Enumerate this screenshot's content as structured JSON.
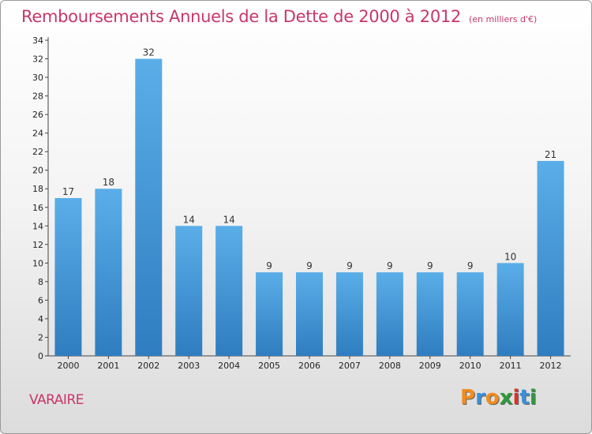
{
  "header": {
    "title": "Remboursements Annuels de la Dette de 2000 à 2012",
    "subtitle": "(en milliers d'€)"
  },
  "footer": {
    "commune": "VARAIRE",
    "logo": [
      "P",
      "r",
      "o",
      "x",
      "i",
      "t",
      "i"
    ]
  },
  "colors": {
    "title": "#c8366b",
    "bar_top": "#5aaee8",
    "bar_bottom": "#2f7dc0",
    "logo": [
      "#f28c1b",
      "#3c8fd6",
      "#f28c1b",
      "#2e9a3a",
      "#d8352a",
      "#3c8fd6",
      "#2e9a3a"
    ]
  },
  "chart_data": {
    "type": "bar",
    "title": "Remboursements Annuels de la Dette de 2000 à 2012",
    "subtitle": "(en milliers d'€)",
    "categories": [
      "2000",
      "2001",
      "2002",
      "2003",
      "2004",
      "2005",
      "2006",
      "2007",
      "2008",
      "2009",
      "2010",
      "2011",
      "2012"
    ],
    "values": [
      17,
      18,
      32,
      14,
      14,
      9,
      9,
      9,
      9,
      9,
      9,
      10,
      21
    ],
    "xlabel": "",
    "ylabel": "",
    "ylim": [
      0,
      34
    ],
    "yticks": [
      0,
      2,
      4,
      6,
      8,
      10,
      12,
      14,
      16,
      18,
      20,
      22,
      24,
      26,
      28,
      30,
      32,
      34
    ],
    "grid": false,
    "legend": "none"
  }
}
